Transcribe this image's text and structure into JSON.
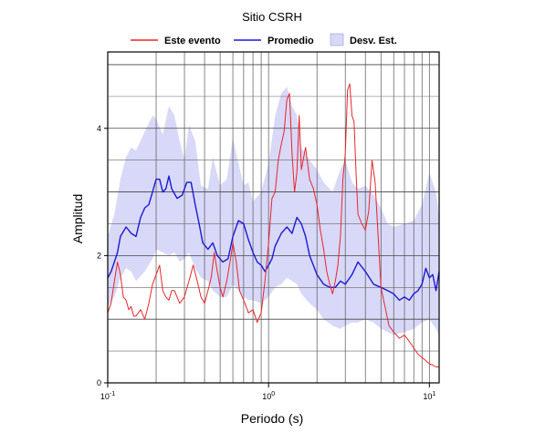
{
  "chart_data": {
    "type": "line",
    "title": "Sitio CSRH",
    "xlabel": "Periodo (s)",
    "ylabel": "Amplitud",
    "x_scale": "log",
    "xlim": [
      0.1,
      11.5
    ],
    "ylim": [
      0,
      5.2
    ],
    "grid": true,
    "legend_position": "top",
    "x_ticks": [
      {
        "value": 0.1,
        "base": "10",
        "exp": "-1"
      },
      {
        "value": 1,
        "base": "10",
        "exp": "0"
      },
      {
        "value": 10,
        "base": "10",
        "exp": "1"
      }
    ],
    "y_ticks": [
      0,
      2,
      4
    ],
    "legend": [
      {
        "label": "Este evento",
        "kind": "line",
        "color": "#e8262b"
      },
      {
        "label": "Promedio",
        "kind": "line",
        "color": "#1a1ad6"
      },
      {
        "label": "Desv. Est.",
        "kind": "band",
        "color": "#d8d8f8"
      }
    ],
    "band": {
      "name": "Desv. Est.",
      "color": "#d8d8f8",
      "x": [
        0.1,
        0.11,
        0.12,
        0.13,
        0.14,
        0.15,
        0.17,
        0.19,
        0.2,
        0.22,
        0.24,
        0.26,
        0.28,
        0.3,
        0.32,
        0.35,
        0.38,
        0.42,
        0.45,
        0.5,
        0.55,
        0.6,
        0.65,
        0.7,
        0.75,
        0.8,
        0.9,
        1.0,
        1.1,
        1.2,
        1.3,
        1.4,
        1.5,
        1.6,
        1.8,
        2.0,
        2.2,
        2.5,
        2.8,
        3.0,
        3.3,
        3.6,
        4.0,
        4.5,
        5.0,
        5.5,
        6.0,
        7.0,
        8.0,
        9.0,
        10.0,
        11.0,
        11.5
      ],
      "upper": [
        2.3,
        2.65,
        3.2,
        3.55,
        3.7,
        3.65,
        3.95,
        4.2,
        4.15,
        3.9,
        4.35,
        4.2,
        3.8,
        3.5,
        4.05,
        3.8,
        3.1,
        3.05,
        3.55,
        3.1,
        3.2,
        3.85,
        3.45,
        3.1,
        3.15,
        2.85,
        3.0,
        3.45,
        4.2,
        4.55,
        4.65,
        4.35,
        4.2,
        3.7,
        3.5,
        3.35,
        3.15,
        3.0,
        3.35,
        3.5,
        3.15,
        3.05,
        3.1,
        2.95,
        2.75,
        2.5,
        2.45,
        2.5,
        2.55,
        2.8,
        3.3,
        3.0,
        2.6
      ],
      "lower": [
        1.2,
        1.35,
        1.65,
        1.8,
        1.75,
        1.6,
        1.75,
        1.95,
        2.1,
        2.05,
        2.0,
        2.05,
        1.9,
        1.95,
        2.05,
        1.8,
        1.65,
        1.6,
        1.45,
        1.35,
        1.35,
        1.55,
        1.45,
        1.35,
        1.3,
        1.3,
        1.25,
        1.35,
        1.5,
        1.55,
        1.65,
        1.6,
        1.55,
        1.4,
        1.25,
        1.15,
        1.0,
        0.9,
        0.85,
        0.9,
        0.95,
        0.95,
        1.0,
        0.95,
        0.85,
        0.8,
        0.75,
        0.8,
        0.85,
        0.95,
        1.0,
        0.85,
        0.75
      ]
    },
    "series": [
      {
        "name": "Promedio",
        "color": "#1a1ad6",
        "x": [
          0.1,
          0.105,
          0.11,
          0.115,
          0.12,
          0.13,
          0.14,
          0.15,
          0.16,
          0.17,
          0.18,
          0.19,
          0.2,
          0.21,
          0.22,
          0.23,
          0.24,
          0.25,
          0.27,
          0.29,
          0.31,
          0.33,
          0.35,
          0.37,
          0.39,
          0.42,
          0.45,
          0.48,
          0.52,
          0.56,
          0.6,
          0.65,
          0.7,
          0.75,
          0.8,
          0.85,
          0.9,
          0.95,
          1.0,
          1.05,
          1.1,
          1.2,
          1.3,
          1.4,
          1.5,
          1.6,
          1.7,
          1.8,
          2.0,
          2.2,
          2.4,
          2.6,
          2.8,
          3.0,
          3.3,
          3.6,
          4.0,
          4.5,
          5.0,
          5.5,
          6.0,
          6.5,
          7.0,
          7.5,
          8.0,
          8.5,
          9.0,
          9.5,
          10.0,
          10.5,
          11.0,
          11.5
        ],
        "y": [
          1.65,
          1.75,
          1.9,
          2.05,
          2.3,
          2.45,
          2.35,
          2.3,
          2.6,
          2.75,
          2.8,
          3.0,
          3.2,
          3.2,
          3.0,
          3.05,
          3.25,
          3.05,
          2.9,
          2.95,
          3.15,
          3.15,
          2.8,
          2.5,
          2.2,
          2.1,
          2.2,
          2.0,
          1.9,
          1.95,
          2.3,
          2.55,
          2.5,
          2.25,
          2.05,
          1.9,
          1.85,
          1.75,
          1.85,
          1.95,
          2.15,
          2.35,
          2.45,
          2.35,
          2.6,
          2.5,
          2.3,
          2.0,
          1.7,
          1.55,
          1.5,
          1.5,
          1.6,
          1.55,
          1.7,
          1.9,
          1.75,
          1.55,
          1.5,
          1.45,
          1.4,
          1.3,
          1.35,
          1.3,
          1.4,
          1.45,
          1.55,
          1.8,
          1.65,
          1.7,
          1.45,
          1.75
        ]
      },
      {
        "name": "Este evento",
        "color": "#e8262b",
        "x": [
          0.1,
          0.105,
          0.11,
          0.115,
          0.12,
          0.125,
          0.13,
          0.135,
          0.14,
          0.145,
          0.15,
          0.16,
          0.17,
          0.18,
          0.19,
          0.2,
          0.21,
          0.22,
          0.23,
          0.24,
          0.25,
          0.26,
          0.28,
          0.3,
          0.32,
          0.34,
          0.36,
          0.38,
          0.4,
          0.42,
          0.44,
          0.46,
          0.48,
          0.5,
          0.52,
          0.55,
          0.58,
          0.6,
          0.63,
          0.66,
          0.7,
          0.75,
          0.8,
          0.85,
          0.9,
          0.95,
          1.0,
          1.05,
          1.1,
          1.15,
          1.2,
          1.25,
          1.3,
          1.35,
          1.4,
          1.45,
          1.5,
          1.55,
          1.6,
          1.7,
          1.8,
          1.9,
          2.0,
          2.1,
          2.2,
          2.3,
          2.4,
          2.5,
          2.6,
          2.7,
          2.8,
          2.9,
          3.0,
          3.1,
          3.2,
          3.3,
          3.4,
          3.5,
          3.6,
          3.8,
          4.0,
          4.2,
          4.4,
          4.6,
          4.8,
          5.0,
          5.3,
          5.6,
          6.0,
          6.5,
          7.0,
          7.5,
          8.0,
          8.5,
          9.0,
          9.5,
          10.0,
          10.5,
          11.0,
          11.5
        ],
        "y": [
          1.1,
          1.25,
          1.6,
          1.9,
          1.7,
          1.35,
          1.3,
          1.15,
          1.2,
          1.05,
          1.05,
          1.15,
          1.0,
          1.25,
          1.55,
          1.7,
          1.85,
          1.45,
          1.35,
          1.3,
          1.45,
          1.45,
          1.25,
          1.35,
          1.6,
          1.85,
          1.6,
          1.35,
          1.25,
          1.45,
          1.65,
          2.05,
          1.75,
          1.5,
          1.35,
          1.6,
          1.95,
          2.2,
          1.9,
          1.45,
          1.3,
          1.1,
          1.15,
          0.95,
          1.1,
          1.6,
          2.2,
          2.9,
          3.0,
          3.5,
          3.75,
          3.95,
          4.45,
          4.55,
          3.6,
          3.0,
          3.3,
          4.2,
          3.35,
          3.7,
          3.2,
          3.05,
          2.8,
          2.4,
          2.1,
          1.75,
          1.55,
          1.4,
          1.6,
          1.85,
          2.3,
          3.2,
          3.6,
          4.6,
          4.7,
          4.2,
          4.1,
          3.3,
          2.65,
          2.5,
          2.4,
          2.7,
          3.5,
          3.15,
          2.3,
          1.5,
          1.2,
          0.9,
          0.8,
          0.7,
          0.75,
          0.65,
          0.55,
          0.45,
          0.4,
          0.35,
          0.3,
          0.28,
          0.25,
          0.25
        ]
      }
    ]
  }
}
